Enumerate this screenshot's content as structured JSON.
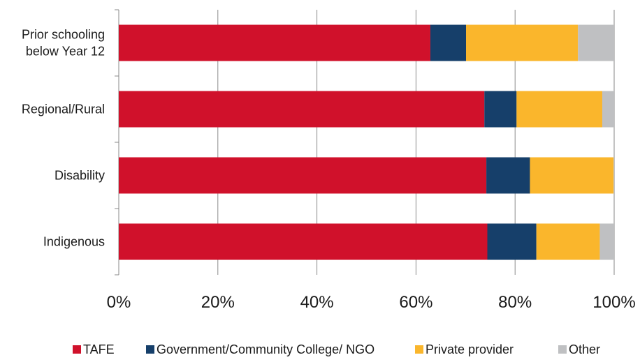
{
  "chart_data": {
    "type": "bar",
    "orientation": "horizontal",
    "stacked": true,
    "categories": [
      "Prior schooling below Year 12",
      "Regional/Rural",
      "Disability",
      "Indigenous"
    ],
    "category_lines": [
      [
        "Prior schooling",
        "below Year 12"
      ],
      [
        "Regional/Rural"
      ],
      [
        "Disability"
      ],
      [
        "Indigenous"
      ]
    ],
    "series": [
      {
        "name": "TAFE",
        "color": "#d0112b",
        "values": [
          62.9,
          73.8,
          74.2,
          74.4
        ]
      },
      {
        "name": "Government/Community College/ NGO",
        "color": "#163f6a",
        "values": [
          7.2,
          6.5,
          8.8,
          9.9
        ]
      },
      {
        "name": "Private provider",
        "color": "#fab62c",
        "values": [
          22.6,
          17.3,
          16.9,
          12.8
        ]
      },
      {
        "name": "Other",
        "color": "#bfc0c2",
        "values": [
          7.3,
          2.4,
          0.1,
          2.9
        ]
      }
    ],
    "x_ticks": [
      "0%",
      "20%",
      "40%",
      "60%",
      "80%",
      "100%"
    ],
    "xlim": [
      0,
      100
    ],
    "title": "",
    "xlabel": "",
    "ylabel": "",
    "grid": "vertical",
    "legend_position": "bottom"
  }
}
